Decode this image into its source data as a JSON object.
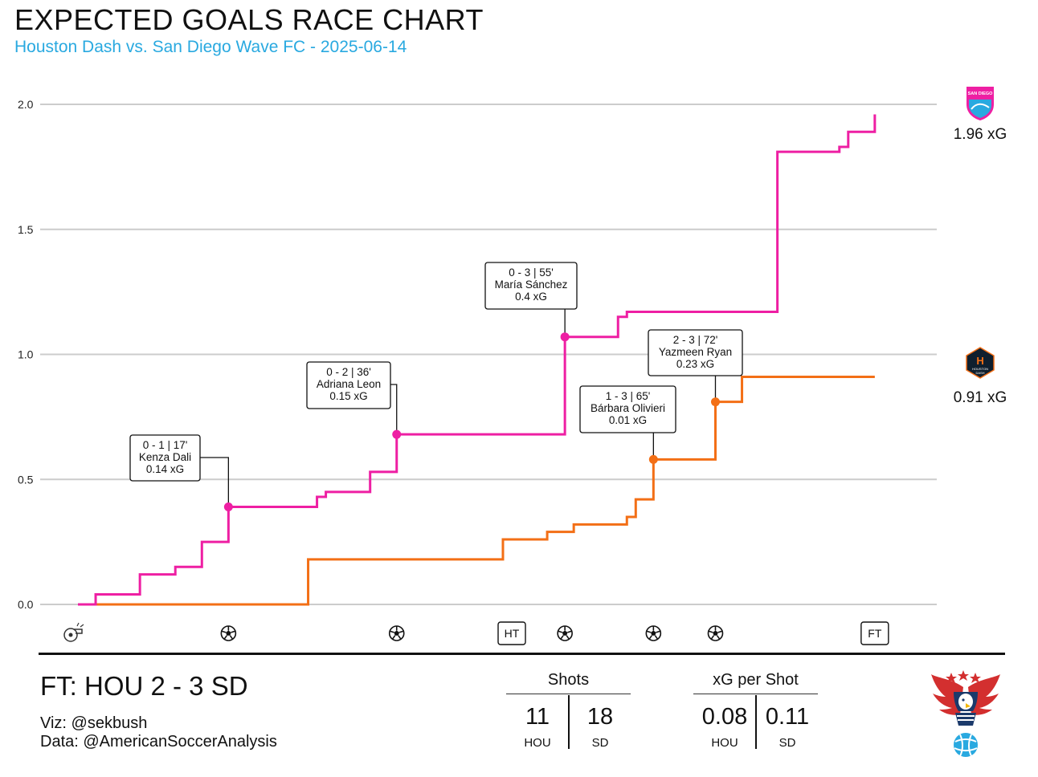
{
  "header": {
    "title": "EXPECTED GOALS RACE CHART",
    "subtitle": "Houston Dash vs. San Diego Wave FC - 2025-06-14"
  },
  "colors": {
    "san_diego": "#ee1fa3",
    "houston": "#f36f16",
    "subtitle": "#29a9e0",
    "grid": "#cccccc"
  },
  "chart_data": {
    "type": "line",
    "x_unit": "minute",
    "xlim": [
      0,
      97
    ],
    "ylim": [
      0,
      2.0
    ],
    "yticks": [
      "0.0",
      "0.5",
      "1.0",
      "1.5",
      "2.0"
    ],
    "grid": "horizontal",
    "series": [
      {
        "name": "San Diego",
        "label": "1.96 xG",
        "x": [
          0,
          2,
          7,
          11,
          14,
          17,
          27,
          28,
          33,
          36,
          55,
          61,
          62,
          79,
          86,
          87,
          90
        ],
        "y": [
          0,
          0.04,
          0.12,
          0.15,
          0.25,
          0.39,
          0.43,
          0.45,
          0.53,
          0.68,
          1.07,
          1.15,
          1.17,
          1.81,
          1.83,
          1.89,
          1.96
        ]
      },
      {
        "name": "Houston",
        "label": "0.91 xG",
        "x": [
          0,
          26,
          48,
          53,
          56,
          62,
          63,
          65,
          72,
          75
        ],
        "y": [
          0,
          0.18,
          0.26,
          0.29,
          0.32,
          0.35,
          0.42,
          0.58,
          0.81,
          0.91
        ]
      }
    ],
    "goals": [
      {
        "minute": 17,
        "team": "San Diego",
        "xg_cum": 0.39,
        "score": "0 - 1  |  17'",
        "player": "Kenza Dali",
        "xg": "0.14 xG"
      },
      {
        "minute": 36,
        "team": "San Diego",
        "xg_cum": 0.68,
        "score": "0 - 2  |  36'",
        "player": "Adriana Leon",
        "xg": "0.15 xG"
      },
      {
        "minute": 55,
        "team": "San Diego",
        "xg_cum": 1.07,
        "score": "0 - 3  |  55'",
        "player": "María Sánchez",
        "xg": "0.4 xG"
      },
      {
        "minute": 65,
        "team": "Houston",
        "xg_cum": 0.58,
        "score": "1 - 3  |  65'",
        "player": "Bárbara Olivieri",
        "xg": "0.01 xG"
      },
      {
        "minute": 72,
        "team": "Houston",
        "xg_cum": 0.81,
        "score": "2 - 3  |  72'",
        "player": "Yazmeen Ryan",
        "xg": "0.23 xG"
      }
    ],
    "markers": {
      "ht_label": "HT",
      "ht_minute": 49,
      "ft_label": "FT",
      "ft_minute": 90,
      "kickoff_icon": "whistle-icon",
      "goal_icon": "soccer-ball-icon"
    },
    "badges": {
      "san_diego": "SAN DIEGO",
      "houston_1": "HOUSTON",
      "houston_2": "DASH"
    }
  },
  "footer": {
    "result": "FT:  HOU 2  - 3 SD",
    "viz_credit": "Viz: @sekbush",
    "data_credit": "Data: @AmericanSoccerAnalysis"
  },
  "stats": {
    "shots": {
      "title": "Shots",
      "hou": "11",
      "sd": "18"
    },
    "xg_per_shot": {
      "title": "xG per Shot",
      "hou": "0.08",
      "sd": "0.11"
    },
    "hou_label": "HOU",
    "sd_label": "SD"
  },
  "brand_icon": "eagle-logo-icon"
}
